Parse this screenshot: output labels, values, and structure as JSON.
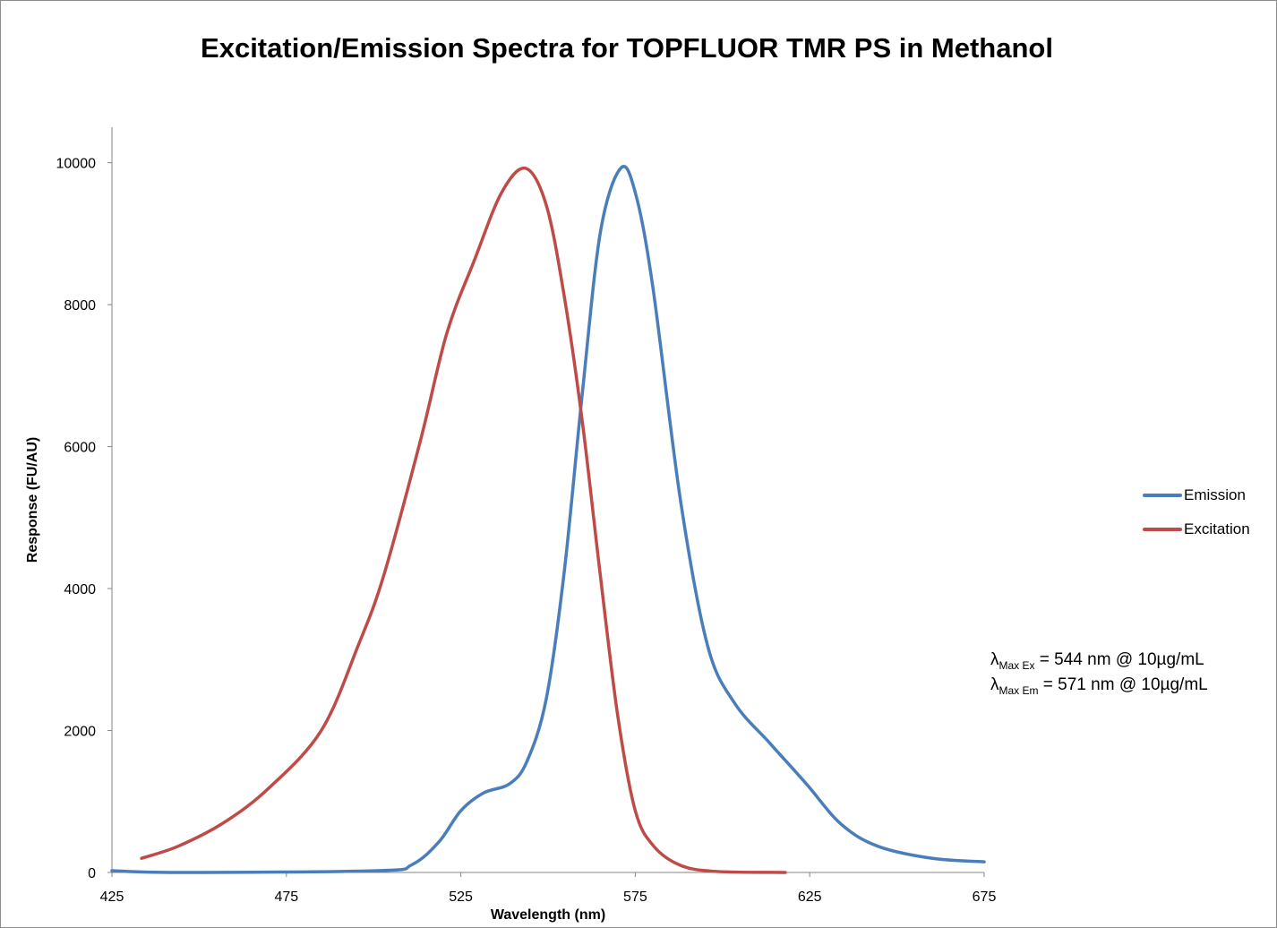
{
  "chart_data": {
    "type": "line",
    "title": "Excitation/Emission Spectra for TOPFLUOR TMR PS in Methanol",
    "xlabel": "Wavelength (nm)",
    "ylabel": "Response (FU/AU)",
    "xlim": [
      425,
      675
    ],
    "ylim": [
      0,
      10500
    ],
    "xticks": [
      "425",
      "475",
      "525",
      "575",
      "625",
      "675"
    ],
    "yticks": [
      "0",
      "2000",
      "4000",
      "6000",
      "8000",
      "10000"
    ],
    "grid": false,
    "legend_position": "right",
    "series": [
      {
        "name": "Emission",
        "color": "#4a7ebb",
        "x": [
          425,
          444,
          501,
          511,
          518.7,
          525,
          531.5,
          539,
          544,
          549.5,
          554.6,
          559.8,
          565,
          570.8,
          575,
          580,
          588,
          595.7,
          603.4,
          613.6,
          624,
          634,
          644.5,
          660,
          675
        ],
        "y": [
          25,
          0,
          25,
          110,
          430,
          870,
          1120,
          1250,
          1570,
          2450,
          4220,
          6740,
          9020,
          9920,
          9580,
          8260,
          5230,
          3200,
          2390,
          1820,
          1250,
          680,
          370,
          200,
          150
        ]
      },
      {
        "name": "Excitation",
        "color": "#be4b48",
        "x": [
          433.5,
          444,
          457,
          470,
          485,
          495.6,
          503,
          513.5,
          521,
          529,
          536.7,
          543.6,
          549.5,
          554.6,
          559.8,
          564.9,
          570,
          575,
          580.3,
          588,
          598,
          618
        ],
        "y": [
          200,
          370,
          700,
          1190,
          2000,
          3200,
          4200,
          6100,
          7600,
          8640,
          9580,
          9920,
          9400,
          8130,
          6360,
          4220,
          2200,
          870,
          370,
          100,
          15,
          0
        ]
      }
    ]
  },
  "annotations": {
    "line1_symbol": "λ",
    "line1_sub": "Max Ex",
    "line1_text": " = 544 nm @ 10µg/mL",
    "line2_symbol": "λ",
    "line2_sub": "Max Em",
    "line2_text": " = 571 nm @ 10µg/mL"
  }
}
